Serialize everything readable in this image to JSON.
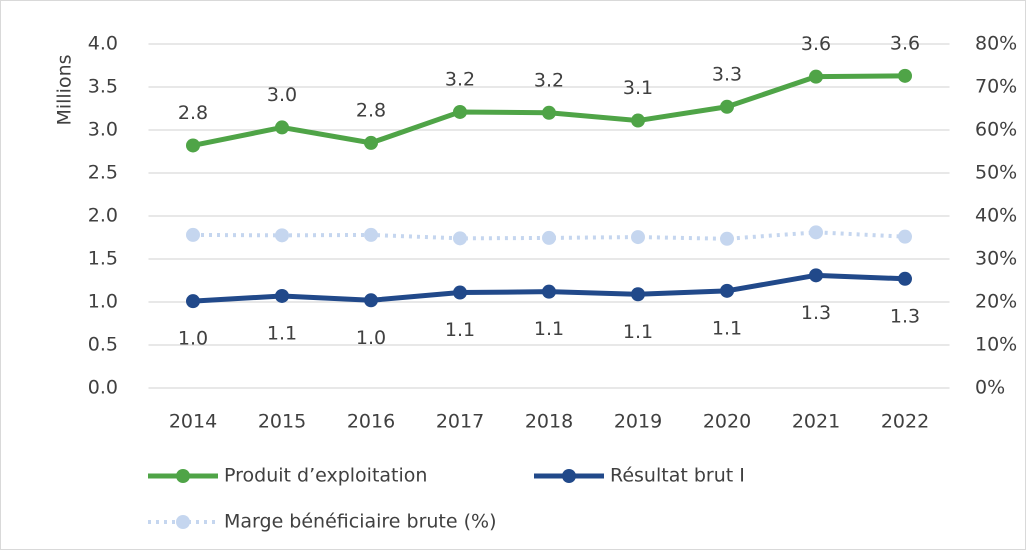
{
  "chart_data": {
    "type": "line",
    "y_label": "Millions",
    "categories": [
      "2014",
      "2015",
      "2016",
      "2017",
      "2018",
      "2019",
      "2020",
      "2021",
      "2022"
    ],
    "series": [
      {
        "name": "Produit d’exploitation",
        "color": "#4fa447",
        "values": [
          2.82,
          3.03,
          2.85,
          3.21,
          3.2,
          3.11,
          3.27,
          3.62,
          3.63
        ],
        "value_labels": [
          "2.8",
          "3.0",
          "2.8",
          "3.2",
          "3.2",
          "3.1",
          "3.3",
          "3.6",
          "3.6"
        ]
      },
      {
        "name": "Résultat brut I",
        "color": "#21498a",
        "values": [
          1.01,
          1.07,
          1.02,
          1.11,
          1.12,
          1.09,
          1.13,
          1.31,
          1.27
        ],
        "value_labels": [
          "1.0",
          "1.1",
          "1.0",
          "1.1",
          "1.1",
          "1.1",
          "1.1",
          "1.3",
          "1.3"
        ]
      },
      {
        "name": "Marge bénéficiaire brute (%)",
        "color": "#c5d6ef",
        "axis": "y2",
        "dotted": true,
        "values": [
          35.6,
          35.5,
          35.6,
          34.8,
          34.9,
          35.1,
          34.7,
          36.2,
          35.2
        ]
      }
    ],
    "ylim": [
      0,
      4
    ],
    "yticks": [
      {
        "value": 0,
        "label": "0.0"
      },
      0.5,
      {
        "value": 1,
        "label": "1.0"
      },
      1.5,
      {
        "value": 2,
        "label": "2.0"
      },
      2.5,
      {
        "value": 3,
        "label": "3.0"
      },
      3.5,
      {
        "value": 4,
        "label": "4.0"
      }
    ],
    "y2lim": [
      0,
      80
    ],
    "y2ticks": [
      {
        "value": 0,
        "label": "0%"
      },
      {
        "value": 10,
        "label": "10%"
      },
      {
        "value": 20,
        "label": "20%"
      },
      {
        "value": 30,
        "label": "30%"
      },
      {
        "value": 40,
        "label": "40%"
      },
      {
        "value": 50,
        "label": "50%"
      },
      {
        "value": 60,
        "label": "60%"
      },
      {
        "value": 70,
        "label": "70%"
      },
      {
        "value": 80,
        "label": "80%"
      }
    ],
    "grid": true,
    "legend": "bottom"
  }
}
